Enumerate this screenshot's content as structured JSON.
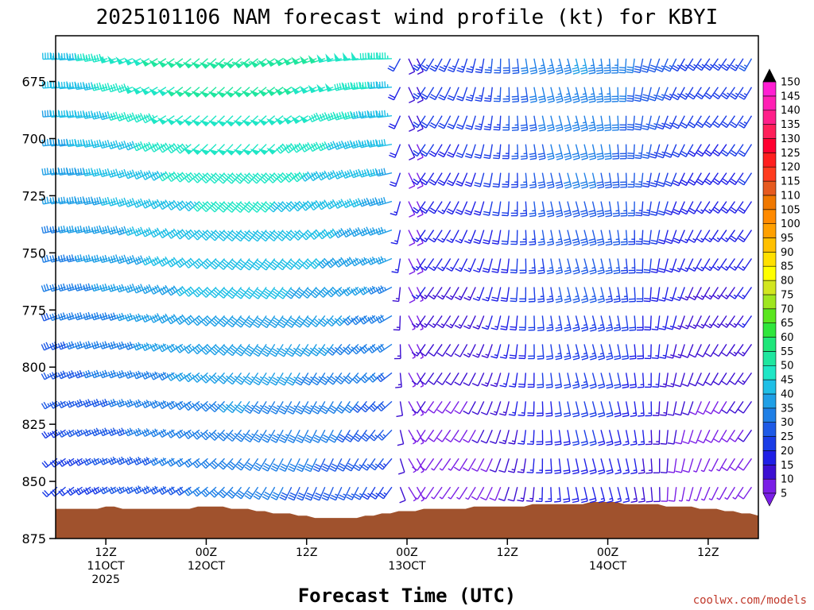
{
  "chart_data": {
    "type": "wind-barb-time-height",
    "title": "2025101106 NAM forecast wind profile (kt) for KBYI",
    "xlabel": "Forecast Time (UTC)",
    "credit": "coolwx.com/models",
    "ylabel": "",
    "y_axis": {
      "unit": "hPa",
      "inverted": true,
      "range": [
        655,
        875
      ],
      "ticks": [
        675,
        700,
        725,
        750,
        775,
        800,
        825,
        850,
        875
      ],
      "tick_labels": [
        "675",
        "700",
        "725",
        "750",
        "775",
        "800",
        "825",
        "850",
        "875"
      ]
    },
    "x_axis": {
      "range_hours": [
        0,
        84
      ],
      "ticks": [
        {
          "hour": 6,
          "labels": [
            "12Z",
            "11OCT",
            "2025"
          ]
        },
        {
          "hour": 18,
          "labels": [
            "00Z",
            "12OCT"
          ]
        },
        {
          "hour": 30,
          "labels": [
            "12Z"
          ]
        },
        {
          "hour": 42,
          "labels": [
            "00Z",
            "13OCT"
          ]
        },
        {
          "hour": 54,
          "labels": [
            "12Z"
          ]
        },
        {
          "hour": 66,
          "labels": [
            "00Z",
            "14OCT"
          ]
        },
        {
          "hour": 78,
          "labels": [
            "12Z"
          ]
        }
      ]
    },
    "colorbar": {
      "levels": [
        5,
        10,
        15,
        20,
        25,
        30,
        35,
        40,
        45,
        50,
        55,
        60,
        65,
        70,
        75,
        80,
        85,
        90,
        95,
        100,
        105,
        110,
        115,
        120,
        125,
        130,
        135,
        140,
        145,
        150
      ],
      "level_labels": [
        "5",
        "10",
        "15",
        "20",
        "25",
        "30",
        "35",
        "40",
        "45",
        "50",
        "55",
        "60",
        "65",
        "70",
        "75",
        "80",
        "85",
        "90",
        "95",
        "100",
        "105",
        "110",
        "115",
        "120",
        "125",
        "130",
        "135",
        "140",
        "145",
        "150"
      ],
      "colors": [
        "#7a1fe6",
        "#3c0fd2",
        "#1f1fe6",
        "#1a3ce6",
        "#1e5ae6",
        "#1f7fe6",
        "#1f9fe6",
        "#1fbfe6",
        "#1fe6c6",
        "#1fe69f",
        "#1fe67a",
        "#2fe63c",
        "#5ae61f",
        "#9fe61f",
        "#d2e61f",
        "#ffff00",
        "#ffe000",
        "#ffc000",
        "#ffa000",
        "#ff8a00",
        "#f07800",
        "#e65a1f",
        "#ff3c1f",
        "#ff1f1f",
        "#ff0030",
        "#ff1f5a",
        "#ff1f8a",
        "#ff1fb4",
        "#ff1fd2",
        "#000000"
      ]
    },
    "terrain": {
      "color": "#a0522d",
      "hours": [
        0,
        1,
        2,
        3,
        4,
        5,
        6,
        7,
        8,
        9,
        10,
        11,
        12,
        13,
        14,
        15,
        16,
        17,
        18,
        19,
        20,
        21,
        22,
        23,
        24,
        25,
        26,
        27,
        28,
        29,
        30,
        31,
        32,
        33,
        34,
        35,
        36,
        37,
        38,
        39,
        40,
        41,
        42,
        43,
        44,
        45,
        46,
        47,
        48,
        49,
        50,
        51,
        52,
        53,
        54,
        55,
        56,
        57,
        58,
        59,
        60,
        61,
        62,
        63,
        64,
        65,
        66,
        67,
        68,
        69,
        70,
        71,
        72,
        73,
        74,
        75,
        76,
        77,
        78,
        79,
        80,
        81,
        82,
        83,
        84
      ],
      "surface_pressure": [
        862,
        862,
        862,
        862,
        862,
        862,
        861,
        861,
        862,
        862,
        862,
        862,
        862,
        862,
        862,
        862,
        862,
        861,
        861,
        861,
        861,
        862,
        862,
        862,
        863,
        863,
        864,
        864,
        864,
        865,
        865,
        866,
        866,
        866,
        866,
        866,
        866,
        865,
        865,
        864,
        864,
        863,
        863,
        863,
        862,
        862,
        862,
        862,
        862,
        862,
        861,
        861,
        861,
        861,
        861,
        861,
        861,
        860,
        860,
        860,
        860,
        860,
        860,
        860,
        859,
        859,
        859,
        859,
        860,
        860,
        860,
        860,
        860,
        861,
        861,
        861,
        861,
        862,
        862,
        862,
        863,
        863,
        864,
        864,
        865
      ]
    }
  }
}
